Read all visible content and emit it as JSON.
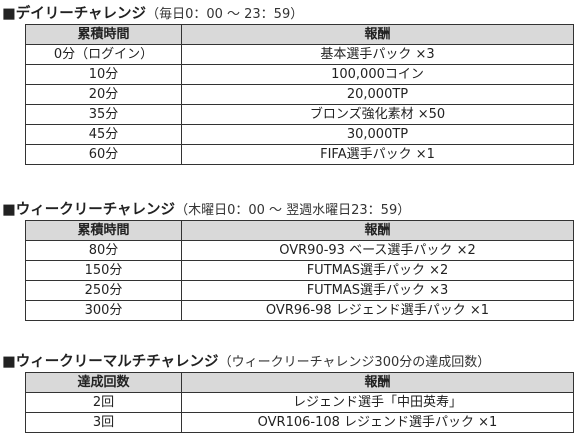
{
  "sections": [
    {
      "marker": "■",
      "title": "デイリーチャレンジ",
      "subtitle": "（毎日0：00 ～ 23：59）",
      "headers": [
        "累積時間",
        "報酬"
      ],
      "rows": [
        [
          "0分（ログイン）",
          "基本選手パック ×3"
        ],
        [
          "10分",
          "100,000コイン"
        ],
        [
          "20分",
          "20,000TP"
        ],
        [
          "35分",
          "ブロンズ強化素材 ×50"
        ],
        [
          "45分",
          "30,000TP"
        ],
        [
          "60分",
          "FIFA選手パック ×1"
        ]
      ]
    },
    {
      "marker": "■",
      "title": "ウィークリーチャレンジ",
      "subtitle": "（木曜日0：00 ～ 翌週水曜日23：59）",
      "headers": [
        "累積時間",
        "報酬"
      ],
      "rows": [
        [
          "80分",
          "OVR90-93 ベース選手パック ×2"
        ],
        [
          "150分",
          "FUTMAS選手パック ×2"
        ],
        [
          "250分",
          "FUTMAS選手パック ×3"
        ],
        [
          "300分",
          "OVR96-98 レジェンド選手パック ×1"
        ]
      ]
    },
    {
      "marker": "■",
      "title": "ウィークリーマルチチャレンジ",
      "subtitle": "（ウィークリーチャレンジ300分の達成回数）",
      "headers": [
        "達成回数",
        "報酬"
      ],
      "rows": [
        [
          "2回",
          "レジェンド選手「中田英寿」"
        ],
        [
          "3回",
          "OVR106-108 レジェンド選手パック ×1"
        ]
      ]
    }
  ]
}
